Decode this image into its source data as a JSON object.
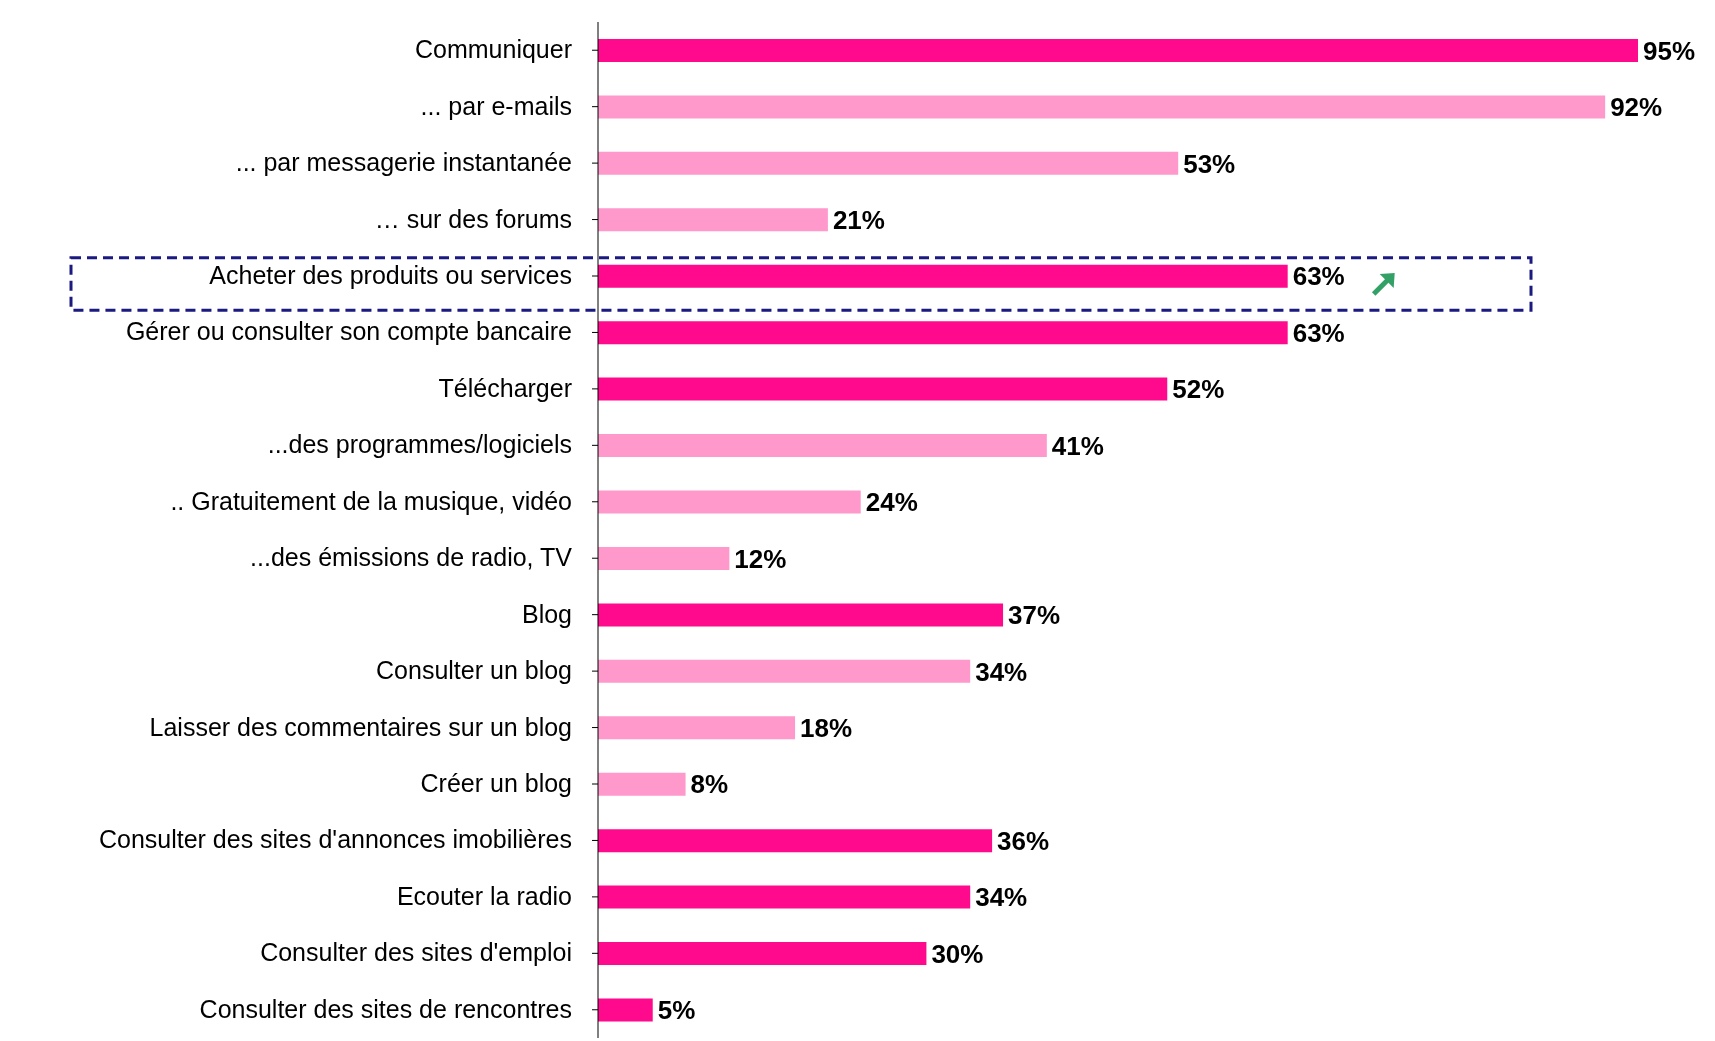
{
  "chart_data": {
    "type": "bar",
    "orientation": "horizontal",
    "categories": [
      "Communiquer",
      "... par e-mails",
      "... par messagerie instantanée",
      "… sur des forums",
      "Acheter des produits ou services",
      "Gérer ou consulter son compte bancaire",
      "Télécharger",
      "...des programmes/logiciels",
      ".. Gratuitement de la musique, vidéo",
      "...des émissions de radio, TV",
      "Blog",
      "Consulter un blog",
      "Laisser des commentaires sur un blog",
      "Créer un blog",
      "Consulter des sites d'annonces imobilières",
      "Ecouter la radio",
      "Consulter des sites d'emploi",
      "Consulter des sites de rencontres"
    ],
    "values": [
      95,
      92,
      53,
      21,
      63,
      63,
      52,
      41,
      24,
      12,
      37,
      34,
      18,
      8,
      36,
      34,
      30,
      5
    ],
    "value_labels": [
      "95%",
      "92%",
      "53%",
      "21%",
      "63%",
      "63%",
      "52%",
      "41%",
      "24%",
      "12%",
      "37%",
      "34%",
      "18%",
      "8%",
      "36%",
      "34%",
      "30%",
      "5%"
    ],
    "colors": [
      "#ff0a8c",
      "#ff99cc",
      "#ff99cc",
      "#ff99cc",
      "#ff0a8c",
      "#ff0a8c",
      "#ff0a8c",
      "#ff99cc",
      "#ff99cc",
      "#ff99cc",
      "#ff0a8c",
      "#ff99cc",
      "#ff99cc",
      "#ff99cc",
      "#ff0a8c",
      "#ff0a8c",
      "#ff0a8c",
      "#ff0a8c"
    ],
    "grid": false,
    "legend": false
  }
}
